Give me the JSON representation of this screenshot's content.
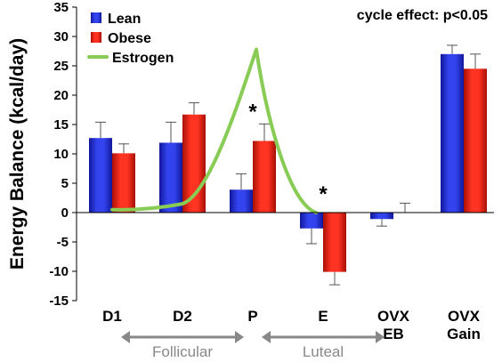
{
  "chart_data": {
    "type": "bar",
    "ylabel": "Energy Balance (kcal/day)",
    "ylim": [
      -15,
      35
    ],
    "yticks": [
      -15,
      -10,
      -5,
      0,
      5,
      10,
      15,
      20,
      25,
      30,
      35
    ],
    "categories": [
      "D1",
      "D2",
      "P",
      "E",
      "OVX EB",
      "OVX Gain"
    ],
    "category_lines": [
      [
        "D1"
      ],
      [
        "D2"
      ],
      [
        "P"
      ],
      [
        "E"
      ],
      [
        "OVX",
        "EB"
      ],
      [
        "OVX",
        "Gain"
      ]
    ],
    "series": [
      {
        "name": "Lean",
        "color": "#2233cc",
        "values": [
          12.7,
          11.9,
          3.9,
          -2.7,
          -1.1,
          27.0
        ],
        "errors": [
          2.7,
          3.5,
          2.7,
          2.6,
          1.2,
          1.5
        ]
      },
      {
        "name": "Obese",
        "color": "#dd2211",
        "values": [
          10.1,
          16.7,
          12.2,
          -10.1,
          0.0,
          24.5
        ],
        "errors": [
          1.6,
          2.0,
          2.9,
          2.2,
          1.6,
          2.5
        ]
      }
    ],
    "line_series": {
      "name": "Estrogen",
      "color": "#88cc55",
      "x_positions": [
        0.0,
        1.0,
        2.05,
        2.9
      ],
      "values": [
        0.5,
        1.5,
        27.8,
        0.0
      ]
    },
    "annotations": [
      {
        "text": "*",
        "category_index": 2,
        "value": 17.5
      },
      {
        "text": "*",
        "category_index": 3,
        "value": 3.5
      },
      {
        "text": "cycle effect: p<0.05"
      }
    ],
    "phases": [
      {
        "label": "Follicular",
        "from_category": 0,
        "to_category": 2
      },
      {
        "label": "Luteal",
        "from_category": 2,
        "to_category": 4
      }
    ],
    "legend_position": "top-left",
    "grid": false
  }
}
